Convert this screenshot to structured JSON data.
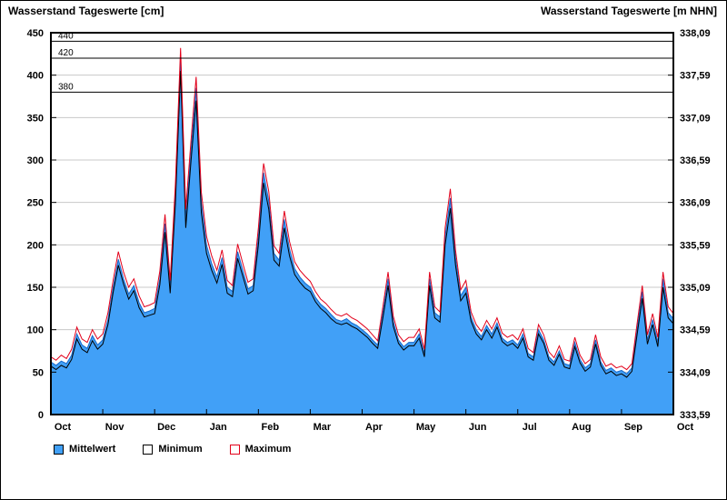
{
  "titles": {
    "left": "Wasserstand Tageswerte [cm]",
    "right": "Wasserstand Tageswerte [m NHN]"
  },
  "legend": {
    "items": [
      {
        "label": "Mittelwert",
        "swatch": "filled-blue"
      },
      {
        "label": "Minimum",
        "swatch": "white-black-border"
      },
      {
        "label": "Maximum",
        "swatch": "white-red-border"
      }
    ]
  },
  "colors": {
    "area_fill": "#41A0F7",
    "mean_line": "#1668CC",
    "min_line": "#000000",
    "max_line": "#E2001A",
    "grid": "#C8C8C8",
    "threshold_line": "#000000",
    "frame": "#000000"
  },
  "chart_data": {
    "type": "area",
    "title": "Wasserstand Tageswerte",
    "x_axis": {
      "tick_labels": [
        "Oct",
        "Nov",
        "Dec",
        "Jan",
        "Feb",
        "Mar",
        "Apr",
        "May",
        "Jun",
        "Jul",
        "Aug",
        "Sep",
        "Oct"
      ]
    },
    "y_left": {
      "unit": "cm",
      "min": 0,
      "max": 450,
      "step": 50,
      "tick_labels": [
        "450",
        "400",
        "350",
        "300",
        "250",
        "200",
        "150",
        "100",
        "50",
        "0"
      ]
    },
    "y_right": {
      "unit": "m NHN",
      "tick_labels": [
        "338,09",
        "337,59",
        "337,09",
        "336,59",
        "336,09",
        "335,59",
        "335,09",
        "334,59",
        "334,09",
        "333,59"
      ]
    },
    "thresholds": [
      {
        "value": 440,
        "label": "440"
      },
      {
        "value": 420,
        "label": "420"
      },
      {
        "value": 380,
        "label": "380"
      }
    ],
    "series": [
      {
        "name": "Mittelwert",
        "style": "area",
        "values": [
          62,
          58,
          63,
          60,
          70,
          95,
          82,
          78,
          93,
          82,
          88,
          112,
          150,
          183,
          160,
          142,
          152,
          132,
          120,
          122,
          125,
          160,
          225,
          150,
          260,
          420,
          230,
          310,
          385,
          250,
          200,
          178,
          162,
          185,
          150,
          145,
          192,
          170,
          148,
          152,
          210,
          285,
          252,
          190,
          182,
          230,
          195,
          172,
          162,
          155,
          150,
          138,
          130,
          125,
          118,
          112,
          110,
          113,
          108,
          105,
          100,
          95,
          88,
          82,
          120,
          160,
          110,
          88,
          80,
          85,
          85,
          95,
          72,
          160,
          120,
          115,
          210,
          255,
          185,
          140,
          150,
          115,
          100,
          92,
          105,
          95,
          108,
          90,
          85,
          88,
          82,
          95,
          72,
          68,
          100,
          88,
          68,
          62,
          75,
          60,
          58,
          85,
          65,
          55,
          60,
          88,
          62,
          52,
          55,
          50,
          52,
          48,
          55,
          100,
          145,
          88,
          112,
          85,
          160,
          120,
          113
        ]
      },
      {
        "name": "Minimum",
        "style": "line",
        "values": [
          57,
          53,
          58,
          55,
          65,
          89,
          77,
          73,
          87,
          77,
          83,
          106,
          144,
          176,
          154,
          136,
          146,
          126,
          115,
          117,
          119,
          153,
          215,
          143,
          248,
          405,
          220,
          298,
          370,
          238,
          190,
          170,
          155,
          177,
          143,
          139,
          184,
          163,
          142,
          146,
          200,
          273,
          242,
          182,
          175,
          220,
          187,
          165,
          156,
          149,
          145,
          133,
          125,
          120,
          113,
          108,
          106,
          108,
          104,
          101,
          96,
          91,
          84,
          78,
          114,
          152,
          104,
          84,
          76,
          81,
          81,
          90,
          68,
          152,
          114,
          109,
          200,
          243,
          176,
          134,
          143,
          110,
          95,
          88,
          100,
          90,
          103,
          86,
          81,
          84,
          78,
          90,
          68,
          64,
          95,
          84,
          64,
          58,
          71,
          56,
          54,
          80,
          61,
          51,
          56,
          83,
          58,
          48,
          51,
          46,
          48,
          44,
          51,
          94,
          137,
          83,
          106,
          80,
          150,
          114,
          107
        ]
      },
      {
        "name": "Maximum",
        "style": "line",
        "values": [
          68,
          64,
          70,
          66,
          77,
          103,
          89,
          85,
          100,
          89,
          95,
          120,
          158,
          192,
          168,
          150,
          160,
          140,
          127,
          129,
          132,
          169,
          236,
          158,
          272,
          432,
          242,
          322,
          398,
          262,
          210,
          187,
          170,
          194,
          158,
          152,
          201,
          178,
          156,
          160,
          220,
          296,
          263,
          199,
          190,
          240,
          204,
          180,
          170,
          163,
          157,
          145,
          136,
          131,
          124,
          118,
          116,
          119,
          114,
          111,
          106,
          101,
          94,
          87,
          127,
          168,
          116,
          94,
          86,
          91,
          91,
          101,
          77,
          168,
          127,
          121,
          220,
          266,
          194,
          147,
          158,
          121,
          106,
          98,
          111,
          101,
          114,
          96,
          91,
          94,
          88,
          101,
          78,
          73,
          106,
          94,
          74,
          67,
          81,
          65,
          63,
          91,
          70,
          60,
          65,
          94,
          68,
          57,
          60,
          55,
          57,
          53,
          60,
          107,
          152,
          94,
          119,
          91,
          168,
          127,
          119
        ]
      }
    ]
  }
}
